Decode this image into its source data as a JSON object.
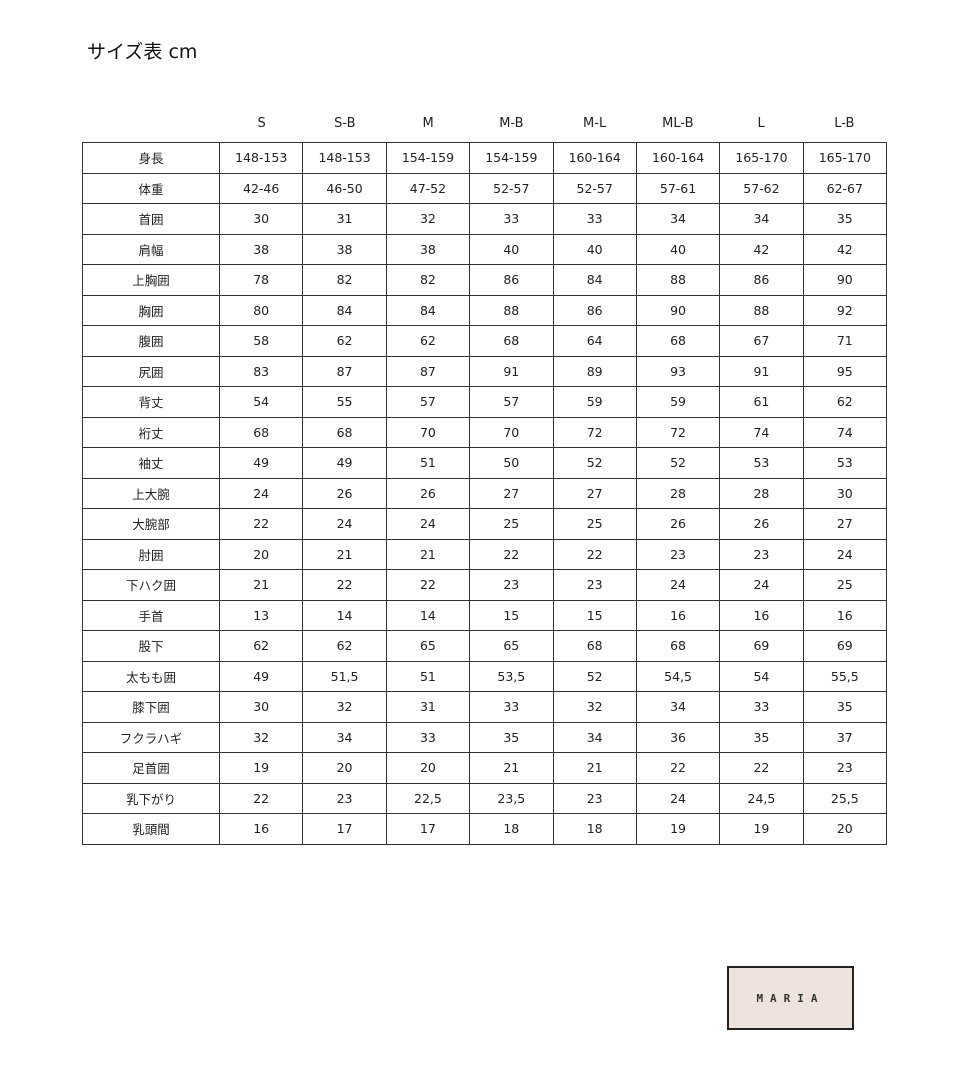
{
  "title": "サイズ表 cm",
  "columns": [
    "S",
    "S-B",
    "M",
    "M-B",
    "M-L",
    "ML-B",
    "L",
    "L-B"
  ],
  "rows": [
    {
      "label": "身長",
      "values": [
        "148-153",
        "148-153",
        "154-159",
        "154-159",
        "160-164",
        "160-164",
        "165-170",
        "165-170"
      ]
    },
    {
      "label": "体重",
      "values": [
        "42-46",
        "46-50",
        "47-52",
        "52-57",
        "52-57",
        "57-61",
        "57-62",
        "62-67"
      ]
    },
    {
      "label": "首囲",
      "values": [
        "30",
        "31",
        "32",
        "33",
        "33",
        "34",
        "34",
        "35"
      ]
    },
    {
      "label": "肩幅",
      "values": [
        "38",
        "38",
        "38",
        "40",
        "40",
        "40",
        "42",
        "42"
      ]
    },
    {
      "label": "上胸囲",
      "values": [
        "78",
        "82",
        "82",
        "86",
        "84",
        "88",
        "86",
        "90"
      ]
    },
    {
      "label": "胸囲",
      "values": [
        "80",
        "84",
        "84",
        "88",
        "86",
        "90",
        "88",
        "92"
      ]
    },
    {
      "label": "腹囲",
      "values": [
        "58",
        "62",
        "62",
        "68",
        "64",
        "68",
        "67",
        "71"
      ]
    },
    {
      "label": "尻囲",
      "values": [
        "83",
        "87",
        "87",
        "91",
        "89",
        "93",
        "91",
        "95"
      ]
    },
    {
      "label": "背丈",
      "values": [
        "54",
        "55",
        "57",
        "57",
        "59",
        "59",
        "61",
        "62"
      ]
    },
    {
      "label": "裄丈",
      "values": [
        "68",
        "68",
        "70",
        "70",
        "72",
        "72",
        "74",
        "74"
      ]
    },
    {
      "label": "袖丈",
      "values": [
        "49",
        "49",
        "51",
        "50",
        "52",
        "52",
        "53",
        "53"
      ]
    },
    {
      "label": "上大腕",
      "values": [
        "24",
        "26",
        "26",
        "27",
        "27",
        "28",
        "28",
        "30"
      ]
    },
    {
      "label": "大腕部",
      "values": [
        "22",
        "24",
        "24",
        "25",
        "25",
        "26",
        "26",
        "27"
      ]
    },
    {
      "label": "肘囲",
      "values": [
        "20",
        "21",
        "21",
        "22",
        "22",
        "23",
        "23",
        "24"
      ]
    },
    {
      "label": "下ハク囲",
      "values": [
        "21",
        "22",
        "22",
        "23",
        "23",
        "24",
        "24",
        "25"
      ]
    },
    {
      "label": "手首",
      "values": [
        "13",
        "14",
        "14",
        "15",
        "15",
        "16",
        "16",
        "16"
      ]
    },
    {
      "label": "股下",
      "values": [
        "62",
        "62",
        "65",
        "65",
        "68",
        "68",
        "69",
        "69"
      ]
    },
    {
      "label": "太もも囲",
      "values": [
        "49",
        "51,5",
        "51",
        "53,5",
        "52",
        "54,5",
        "54",
        "55,5"
      ]
    },
    {
      "label": "膝下囲",
      "values": [
        "30",
        "32",
        "31",
        "33",
        "32",
        "34",
        "33",
        "35"
      ]
    },
    {
      "label": "フクラハギ",
      "values": [
        "32",
        "34",
        "33",
        "35",
        "34",
        "36",
        "35",
        "37"
      ]
    },
    {
      "label": "足首囲",
      "values": [
        "19",
        "20",
        "20",
        "21",
        "21",
        "22",
        "22",
        "23"
      ]
    },
    {
      "label": "乳下がり",
      "values": [
        "22",
        "23",
        "22,5",
        "23,5",
        "23",
        "24",
        "24,5",
        "25,5"
      ]
    },
    {
      "label": "乳頭間",
      "values": [
        "16",
        "17",
        "17",
        "18",
        "18",
        "19",
        "19",
        "20"
      ]
    }
  ],
  "logo": {
    "text": "MARIA",
    "background": "#ede3dc"
  }
}
